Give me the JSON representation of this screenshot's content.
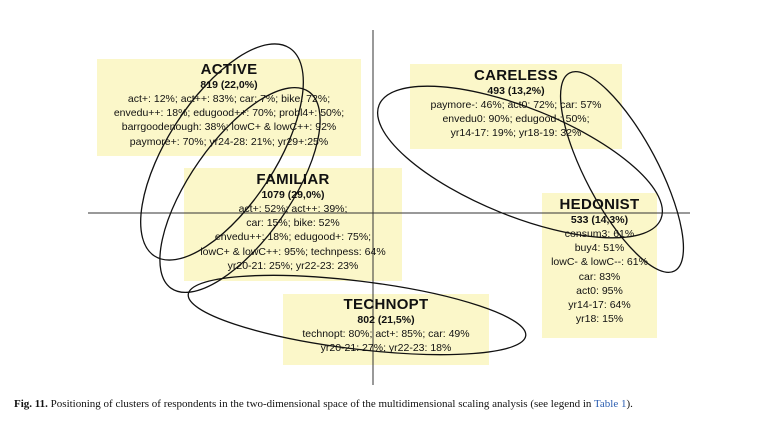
{
  "clusters": {
    "active": {
      "name": "ACTIVE",
      "size": "819 (22,0%)",
      "lines": [
        "act+: 12%; act++: 83%; car: 7%; bike: 72%;",
        "envedu++: 18%; edugood++: 70%; probl4+: 50%;",
        "barrgoodenough: 38%; lowC+ & lowC++: 92%",
        "paymore+: 70%; yr24-28: 21%; yr29+:25%"
      ]
    },
    "careless": {
      "name": "CARELESS",
      "size": "493 (13,2%)",
      "lines": [
        "paymore-: 46%; act0: 72%; car: 57%",
        "envedu0: 90%; edugood-: 50%;",
        "yr14-17: 19%; yr18-19: 32%"
      ]
    },
    "familiar": {
      "name": "FAMILIAR",
      "size": "1079 (29,0%)",
      "lines": [
        "act+: 52%; act++: 39%;",
        "car: 15%; bike: 52%",
        "envedu++: 18%; edugood+: 75%;",
        "lowC+ & lowC++: 95%; technpess: 64%",
        "yr20-21: 25%; yr22-23: 23%"
      ]
    },
    "hedonist": {
      "name": "HEDONIST",
      "size": "533 (14,3%)",
      "lines": [
        "consum3: 61%",
        "buy4: 51%",
        "lowC- & lowC--: 61%",
        "car: 83%",
        "act0: 95%",
        "yr14-17: 64%",
        "yr18: 15%"
      ]
    },
    "technopt": {
      "name": "TECHNOPT",
      "size": "802 (21,5%)",
      "lines": [
        "technopt: 80%; act+: 85%; car: 49%",
        "yr20-21: 27%; yr22-23: 18%"
      ]
    }
  },
  "caption": {
    "label": "Fig. 11.",
    "text": "Positioning of clusters of respondents in the two-dimensional space of the multidimensional scaling analysis (see legend in",
    "ref": "Table 1",
    "end": ")."
  }
}
